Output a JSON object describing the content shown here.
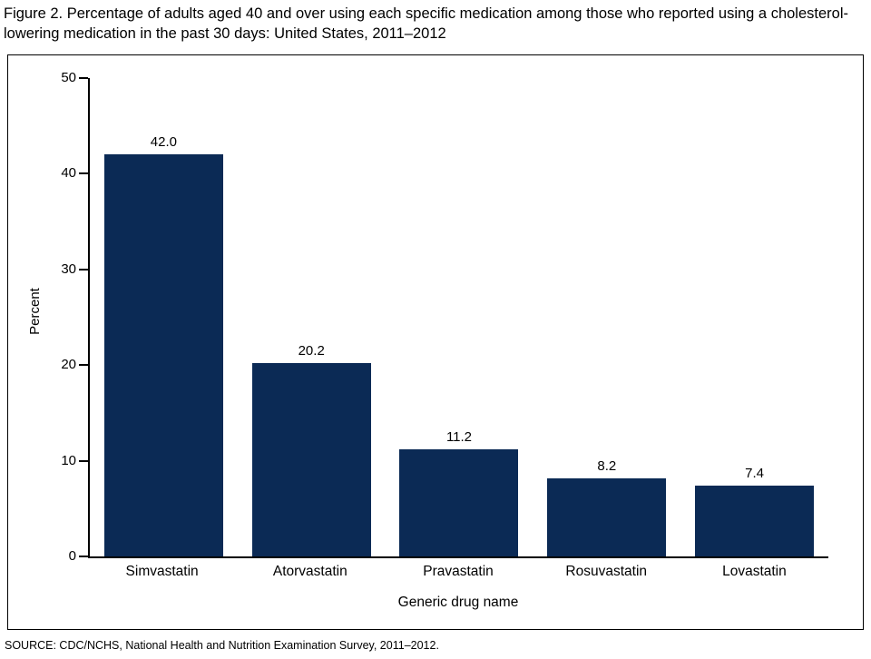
{
  "title": "Figure 2. Percentage of adults aged 40 and over using each specific medication among those who reported using a cholesterol-lowering medication in the past 30 days: United States, 2011–2012",
  "source": "SOURCE: CDC/NCHS, National Health and Nutrition Examination Survey, 2011–2012.",
  "chart_data": {
    "type": "bar",
    "categories": [
      "Simvastatin",
      "Atorvastatin",
      "Pravastatin",
      "Rosuvastatin",
      "Lovastatin"
    ],
    "values": [
      42.0,
      20.2,
      11.2,
      8.2,
      7.4
    ],
    "value_labels": [
      "42.0",
      "20.2",
      "11.2",
      "8.2",
      "7.4"
    ],
    "xlabel": "Generic drug name",
    "ylabel": "Percent",
    "ylim": [
      0,
      50
    ],
    "yticks": [
      0,
      10,
      20,
      30,
      40,
      50
    ],
    "bar_color": "#0b2a55",
    "axis_color": "#000000",
    "grid": false,
    "legend": "none"
  }
}
